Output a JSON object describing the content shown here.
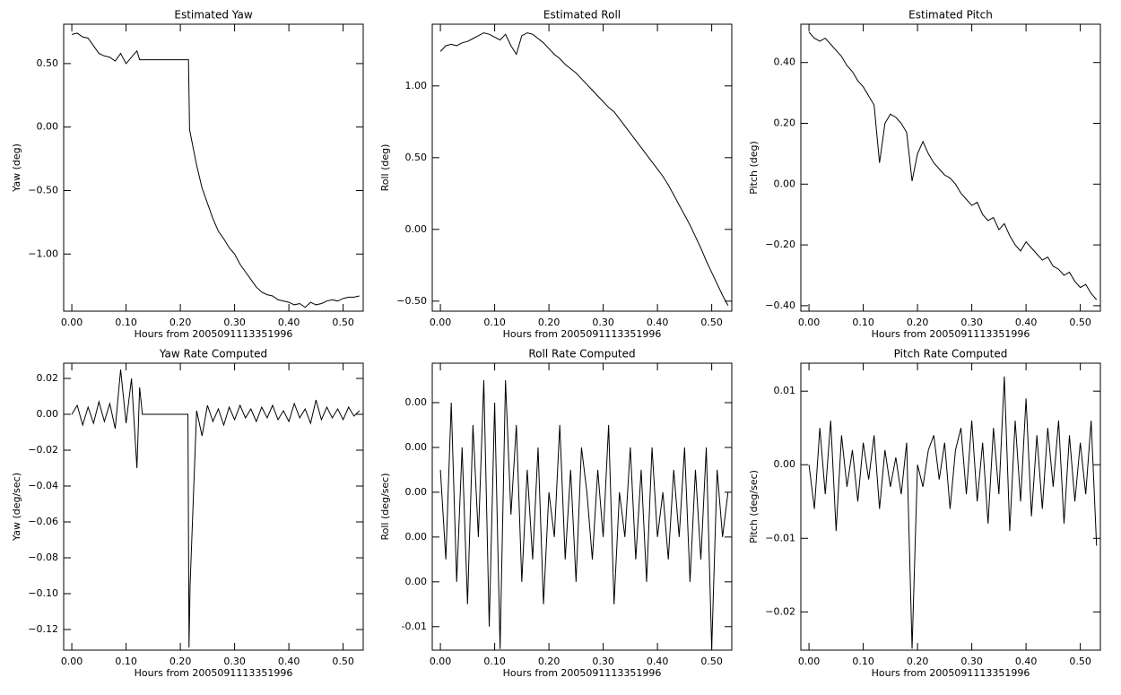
{
  "chart_data": [
    {
      "type": "line",
      "title": "Estimated Yaw",
      "xlabel": "Hours from 2005091113351996",
      "ylabel": "Yaw (deg)",
      "color": "#000000",
      "x": [
        0,
        0.01,
        0.02,
        0.03,
        0.04,
        0.05,
        0.06,
        0.07,
        0.08,
        0.09,
        0.1,
        0.11,
        0.12,
        0.125,
        0.215,
        0.217,
        0.23,
        0.24,
        0.25,
        0.26,
        0.27,
        0.28,
        0.29,
        0.3,
        0.31,
        0.32,
        0.33,
        0.34,
        0.35,
        0.36,
        0.37,
        0.38,
        0.39,
        0.4,
        0.41,
        0.42,
        0.43,
        0.44,
        0.45,
        0.46,
        0.47,
        0.48,
        0.49,
        0.5,
        0.51,
        0.52,
        0.53
      ],
      "values": [
        0.73,
        0.74,
        0.71,
        0.7,
        0.64,
        0.58,
        0.56,
        0.55,
        0.52,
        0.58,
        0.5,
        0.55,
        0.6,
        0.53,
        0.53,
        -0.02,
        -0.3,
        -0.48,
        -0.6,
        -0.72,
        -0.82,
        -0.88,
        -0.95,
        -1.0,
        -1.08,
        -1.14,
        -1.2,
        -1.26,
        -1.3,
        -1.32,
        -1.33,
        -1.36,
        -1.37,
        -1.38,
        -1.4,
        -1.39,
        -1.42,
        -1.38,
        -1.4,
        -1.39,
        -1.37,
        -1.36,
        -1.37,
        -1.35,
        -1.34,
        -1.34,
        -1.33
      ],
      "xlim": [
        -0.015,
        0.537
      ],
      "xticks": [
        {
          "value": 0,
          "label": "0.00"
        },
        {
          "value": 0.1,
          "label": "0.10"
        },
        {
          "value": 0.2,
          "label": "0.20"
        },
        {
          "value": 0.3,
          "label": "0.30"
        },
        {
          "value": 0.4,
          "label": "0.40"
        },
        {
          "value": 0.5,
          "label": "0.50"
        }
      ],
      "ylim": [
        -1.45,
        0.81
      ],
      "yticks": [
        {
          "value": 0.5,
          "label": "0.50"
        },
        {
          "value": 0,
          "label": "0.00"
        },
        {
          "value": -0.5,
          "label": "−0.50"
        },
        {
          "value": -1,
          "label": "−1.00"
        }
      ]
    },
    {
      "type": "line",
      "title": "Estimated Roll",
      "xlabel": "Hours from 2005091113351996",
      "ylabel": "Roll (deg)",
      "color": "#000000",
      "x": [
        0,
        0.01,
        0.02,
        0.03,
        0.04,
        0.05,
        0.06,
        0.07,
        0.08,
        0.09,
        0.1,
        0.11,
        0.12,
        0.13,
        0.14,
        0.15,
        0.16,
        0.17,
        0.18,
        0.19,
        0.2,
        0.21,
        0.22,
        0.23,
        0.24,
        0.25,
        0.26,
        0.27,
        0.28,
        0.29,
        0.3,
        0.31,
        0.32,
        0.33,
        0.34,
        0.35,
        0.36,
        0.37,
        0.38,
        0.39,
        0.4,
        0.41,
        0.42,
        0.43,
        0.44,
        0.45,
        0.46,
        0.47,
        0.48,
        0.49,
        0.5,
        0.51,
        0.52,
        0.53
      ],
      "values": [
        1.24,
        1.28,
        1.29,
        1.28,
        1.3,
        1.31,
        1.33,
        1.35,
        1.37,
        1.36,
        1.34,
        1.32,
        1.36,
        1.28,
        1.22,
        1.35,
        1.37,
        1.36,
        1.33,
        1.3,
        1.26,
        1.22,
        1.19,
        1.15,
        1.12,
        1.09,
        1.05,
        1.01,
        0.97,
        0.93,
        0.89,
        0.85,
        0.82,
        0.77,
        0.72,
        0.67,
        0.62,
        0.57,
        0.52,
        0.47,
        0.42,
        0.37,
        0.31,
        0.24,
        0.17,
        0.1,
        0.03,
        -0.05,
        -0.13,
        -0.22,
        -0.3,
        -0.38,
        -0.46,
        -0.53
      ],
      "xlim": [
        -0.015,
        0.537
      ],
      "xticks": [
        {
          "value": 0,
          "label": "0.00"
        },
        {
          "value": 0.1,
          "label": "0.10"
        },
        {
          "value": 0.2,
          "label": "0.20"
        },
        {
          "value": 0.3,
          "label": "0.30"
        },
        {
          "value": 0.4,
          "label": "0.40"
        },
        {
          "value": 0.5,
          "label": "0.50"
        }
      ],
      "ylim": [
        -0.57,
        1.43
      ],
      "yticks": [
        {
          "value": 1,
          "label": "1.00"
        },
        {
          "value": 0.5,
          "label": "0.50"
        },
        {
          "value": 0,
          "label": "0.00"
        },
        {
          "value": -0.5,
          "label": "−0.50"
        }
      ]
    },
    {
      "type": "line",
      "title": "Estimated Pitch",
      "xlabel": "Hours from 2005091113351996",
      "ylabel": "Pitch (deg)",
      "color": "#000000",
      "x": [
        0,
        0.01,
        0.02,
        0.03,
        0.04,
        0.05,
        0.06,
        0.07,
        0.08,
        0.09,
        0.1,
        0.11,
        0.12,
        0.13,
        0.14,
        0.15,
        0.16,
        0.17,
        0.18,
        0.19,
        0.2,
        0.21,
        0.22,
        0.23,
        0.24,
        0.25,
        0.26,
        0.27,
        0.28,
        0.29,
        0.3,
        0.31,
        0.32,
        0.33,
        0.34,
        0.35,
        0.36,
        0.37,
        0.38,
        0.39,
        0.4,
        0.41,
        0.42,
        0.43,
        0.44,
        0.45,
        0.46,
        0.47,
        0.48,
        0.49,
        0.5,
        0.51,
        0.52,
        0.53
      ],
      "values": [
        0.5,
        0.48,
        0.47,
        0.48,
        0.46,
        0.44,
        0.42,
        0.39,
        0.37,
        0.34,
        0.32,
        0.29,
        0.26,
        0.07,
        0.2,
        0.23,
        0.22,
        0.2,
        0.17,
        0.01,
        0.1,
        0.14,
        0.1,
        0.07,
        0.05,
        0.03,
        0.02,
        0.0,
        -0.03,
        -0.05,
        -0.07,
        -0.06,
        -0.1,
        -0.12,
        -0.11,
        -0.15,
        -0.13,
        -0.17,
        -0.2,
        -0.22,
        -0.19,
        -0.21,
        -0.23,
        -0.25,
        -0.24,
        -0.27,
        -0.28,
        -0.3,
        -0.29,
        -0.32,
        -0.34,
        -0.33,
        -0.36,
        -0.38
      ],
      "xlim": [
        -0.015,
        0.537
      ],
      "xticks": [
        {
          "value": 0,
          "label": "0.00"
        },
        {
          "value": 0.1,
          "label": "0.10"
        },
        {
          "value": 0.2,
          "label": "0.20"
        },
        {
          "value": 0.3,
          "label": "0.30"
        },
        {
          "value": 0.4,
          "label": "0.40"
        },
        {
          "value": 0.5,
          "label": "0.50"
        }
      ],
      "ylim": [
        -0.418,
        0.526
      ],
      "yticks": [
        {
          "value": 0.4,
          "label": "0.40"
        },
        {
          "value": 0.2,
          "label": "0.20"
        },
        {
          "value": 0,
          "label": "0.00"
        },
        {
          "value": -0.2,
          "label": "−0.20"
        },
        {
          "value": -0.4,
          "label": "−0.40"
        }
      ]
    },
    {
      "type": "line",
      "title": "Yaw Rate Computed",
      "xlabel": "Hours from 2005091113351996",
      "ylabel": "Yaw (deg/sec)",
      "color": "#000000",
      "x": [
        0,
        0.01,
        0.02,
        0.03,
        0.04,
        0.05,
        0.06,
        0.07,
        0.08,
        0.09,
        0.1,
        0.11,
        0.12,
        0.125,
        0.13,
        0.214,
        0.216,
        0.218,
        0.23,
        0.24,
        0.25,
        0.26,
        0.27,
        0.28,
        0.29,
        0.3,
        0.31,
        0.32,
        0.33,
        0.34,
        0.35,
        0.36,
        0.37,
        0.38,
        0.39,
        0.4,
        0.41,
        0.42,
        0.43,
        0.44,
        0.45,
        0.46,
        0.47,
        0.48,
        0.49,
        0.5,
        0.51,
        0.52,
        0.53
      ],
      "values": [
        0.0,
        0.005,
        -0.006,
        0.004,
        -0.005,
        0.007,
        -0.004,
        0.006,
        -0.008,
        0.025,
        -0.005,
        0.02,
        -0.03,
        0.015,
        0.0,
        0.0,
        -0.13,
        -0.095,
        0.002,
        -0.012,
        0.005,
        -0.004,
        0.003,
        -0.006,
        0.004,
        -0.003,
        0.005,
        -0.002,
        0.003,
        -0.004,
        0.004,
        -0.002,
        0.005,
        -0.003,
        0.002,
        -0.004,
        0.006,
        -0.002,
        0.003,
        -0.005,
        0.008,
        -0.003,
        0.004,
        -0.002,
        0.003,
        -0.003,
        0.004,
        -0.001,
        0.002
      ],
      "xlim": [
        -0.015,
        0.537
      ],
      "xticks": [
        {
          "value": 0,
          "label": "0.00"
        },
        {
          "value": 0.1,
          "label": "0.10"
        },
        {
          "value": 0.2,
          "label": "0.20"
        },
        {
          "value": 0.3,
          "label": "0.30"
        },
        {
          "value": 0.4,
          "label": "0.40"
        },
        {
          "value": 0.5,
          "label": "0.50"
        }
      ],
      "ylim": [
        -0.1315,
        0.0285
      ],
      "yticks": [
        {
          "value": 0.02,
          "label": "0.02"
        },
        {
          "value": 0,
          "label": "0.00"
        },
        {
          "value": -0.02,
          "label": "−0.02"
        },
        {
          "value": -0.04,
          "label": "−0.04"
        },
        {
          "value": -0.06,
          "label": "−0.06"
        },
        {
          "value": -0.08,
          "label": "−0.08"
        },
        {
          "value": -0.1,
          "label": "−0.10"
        },
        {
          "value": -0.12,
          "label": "−0.12"
        }
      ]
    },
    {
      "type": "line",
      "title": "Roll Rate Computed",
      "xlabel": "Hours from 2005091113351996",
      "ylabel": "Roll (deg/sec)",
      "color": "#000000",
      "x": [
        0,
        0.01,
        0.02,
        0.03,
        0.04,
        0.05,
        0.06,
        0.07,
        0.08,
        0.09,
        0.1,
        0.11,
        0.12,
        0.13,
        0.14,
        0.15,
        0.16,
        0.17,
        0.18,
        0.19,
        0.2,
        0.21,
        0.22,
        0.23,
        0.24,
        0.25,
        0.26,
        0.27,
        0.28,
        0.29,
        0.3,
        0.31,
        0.32,
        0.33,
        0.34,
        0.35,
        0.36,
        0.37,
        0.38,
        0.39,
        0.4,
        0.41,
        0.42,
        0.43,
        0.44,
        0.45,
        0.46,
        0.47,
        0.48,
        0.49,
        0.5,
        0.51,
        0.52,
        0.53
      ],
      "values": [
        0.001,
        -0.003,
        0.004,
        -0.004,
        0.002,
        -0.005,
        0.003,
        -0.002,
        0.005,
        -0.006,
        0.004,
        -0.007,
        0.005,
        -0.001,
        0.003,
        -0.004,
        0.001,
        -0.003,
        0.002,
        -0.005,
        0.0,
        -0.002,
        0.003,
        -0.003,
        0.001,
        -0.004,
        0.002,
        0.0,
        -0.003,
        0.001,
        -0.002,
        0.003,
        -0.005,
        0.0,
        -0.002,
        0.002,
        -0.003,
        0.001,
        -0.004,
        0.002,
        -0.002,
        0.0,
        -0.003,
        0.001,
        -0.002,
        0.002,
        -0.004,
        0.001,
        -0.003,
        0.002,
        -0.007,
        0.001,
        -0.002,
        0.0
      ],
      "xlim": [
        -0.015,
        0.537
      ],
      "xticks": [
        {
          "value": 0,
          "label": "0.00"
        },
        {
          "value": 0.1,
          "label": "0.10"
        },
        {
          "value": 0.2,
          "label": "0.20"
        },
        {
          "value": 0.3,
          "label": "0.30"
        },
        {
          "value": 0.4,
          "label": "0.40"
        },
        {
          "value": 0.5,
          "label": "0.50"
        }
      ],
      "ylim": [
        -0.00705,
        0.00576
      ],
      "yticks": [
        {
          "value": 0.004,
          "label": "0.00"
        },
        {
          "value": 0.002,
          "label": "0.00"
        },
        {
          "value": 0,
          "label": "0.00"
        },
        {
          "value": -0.002,
          "label": "0.00"
        },
        {
          "value": -0.004,
          "label": "0.00"
        },
        {
          "value": -0.006,
          "label": "-0.01"
        }
      ]
    },
    {
      "type": "line",
      "title": "Pitch Rate Computed",
      "xlabel": "Hours from 2005091113351996",
      "ylabel": "Pitch (deg/sec)",
      "color": "#000000",
      "x": [
        0,
        0.01,
        0.02,
        0.03,
        0.04,
        0.05,
        0.06,
        0.07,
        0.08,
        0.09,
        0.1,
        0.11,
        0.12,
        0.13,
        0.14,
        0.15,
        0.16,
        0.17,
        0.18,
        0.19,
        0.2,
        0.21,
        0.22,
        0.23,
        0.24,
        0.25,
        0.26,
        0.27,
        0.28,
        0.29,
        0.3,
        0.31,
        0.32,
        0.33,
        0.34,
        0.35,
        0.36,
        0.37,
        0.38,
        0.39,
        0.4,
        0.41,
        0.42,
        0.43,
        0.44,
        0.45,
        0.46,
        0.47,
        0.48,
        0.49,
        0.5,
        0.51,
        0.52,
        0.53
      ],
      "values": [
        0.0,
        -0.006,
        0.005,
        -0.004,
        0.006,
        -0.009,
        0.004,
        -0.003,
        0.002,
        -0.005,
        0.003,
        -0.002,
        0.004,
        -0.006,
        0.002,
        -0.003,
        0.001,
        -0.004,
        0.003,
        -0.025,
        0.0,
        -0.003,
        0.002,
        0.004,
        -0.002,
        0.003,
        -0.006,
        0.002,
        0.005,
        -0.004,
        0.006,
        -0.005,
        0.003,
        -0.008,
        0.005,
        -0.004,
        0.012,
        -0.009,
        0.006,
        -0.005,
        0.009,
        -0.007,
        0.004,
        -0.006,
        0.005,
        -0.003,
        0.006,
        -0.008,
        0.004,
        -0.005,
        0.003,
        -0.004,
        0.006,
        -0.011
      ],
      "xlim": [
        -0.015,
        0.537
      ],
      "xticks": [
        {
          "value": 0,
          "label": "0.00"
        },
        {
          "value": 0.1,
          "label": "0.10"
        },
        {
          "value": 0.2,
          "label": "0.20"
        },
        {
          "value": 0.3,
          "label": "0.30"
        },
        {
          "value": 0.4,
          "label": "0.40"
        },
        {
          "value": 0.5,
          "label": "0.50"
        }
      ],
      "ylim": [
        -0.0252,
        0.0138
      ],
      "yticks": [
        {
          "value": 0.01,
          "label": "0.01"
        },
        {
          "value": 0,
          "label": "0.00"
        },
        {
          "value": -0.01,
          "label": "−0.01"
        },
        {
          "value": -0.02,
          "label": "−0.02"
        }
      ]
    }
  ]
}
